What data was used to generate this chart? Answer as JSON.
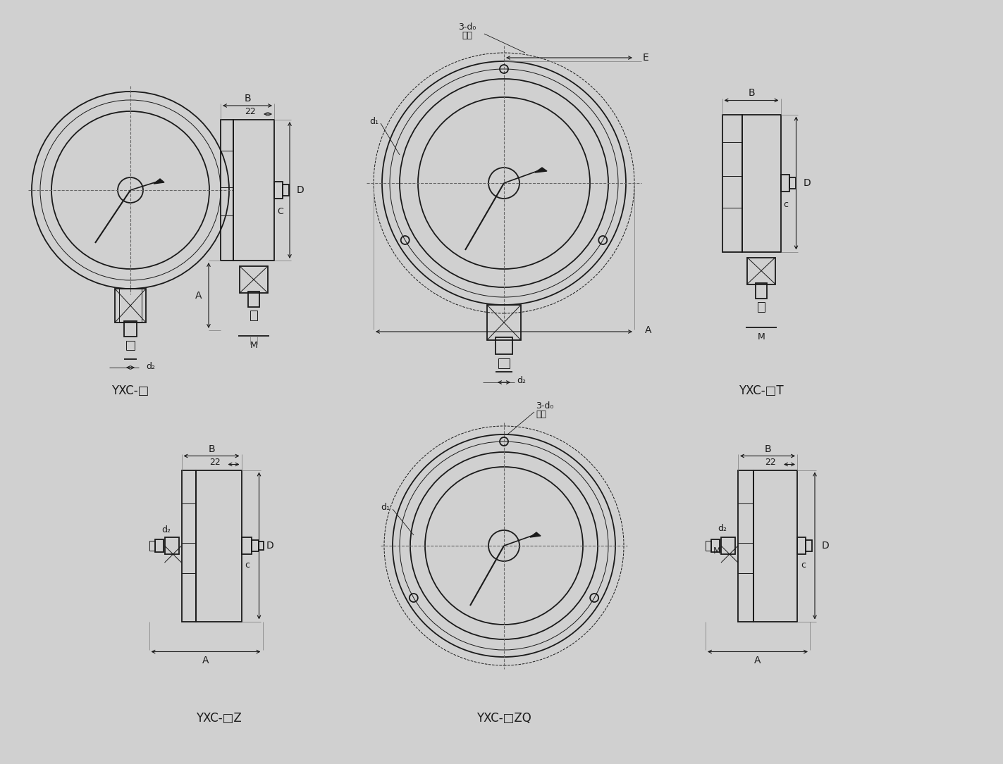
{
  "bg_color": "#d0d0d0",
  "line_color": "#1a1a1a",
  "labels": {
    "YXC_square": "YXC-□",
    "YXC_T": "YXC-□T",
    "YXC_Z": "YXC-□Z",
    "YXC_ZQ": "YXC-□ZQ"
  },
  "figsize": [
    14.23,
    10.85
  ],
  "dpi": 100
}
